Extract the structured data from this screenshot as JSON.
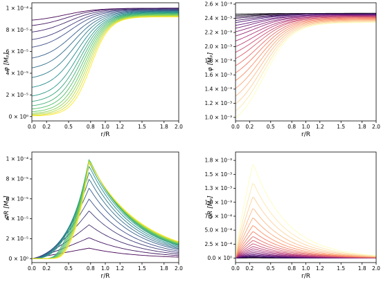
{
  "chart_data": [
    {
      "type": "line",
      "panel": "top-left",
      "xlabel": "r/R",
      "ylabel": "φ [Mₚ]",
      "xlim": [
        0,
        2
      ],
      "ylim": [
        -4e-06,
        0.000105
      ],
      "xticks": [
        0,
        0.2,
        0.5,
        0.8,
        1.0,
        1.2,
        1.5,
        1.8,
        2.0
      ],
      "xtick_labels": [
        "0.0",
        "0.2",
        "0.5",
        "0.8",
        "1.0",
        "1.2",
        "1.5",
        "1.8",
        "2.0"
      ],
      "yticks": [
        0,
        2e-05,
        4e-05,
        6e-05,
        8e-05,
        0.0001
      ],
      "ytick_labels": [
        "0 × 10⁰",
        "2 × 10⁻⁵",
        "4 × 10⁻⁵",
        "6 × 10⁻⁵",
        "8 × 10⁻⁵",
        "1 × 10⁻⁴"
      ],
      "colormap": [
        "#440154",
        "#3b528b",
        "#21918c",
        "#5ec962",
        "#fde725"
      ],
      "series_description": "family of curves: phi(r) rising from a core value phi0 to 1e-4",
      "n_series": 18,
      "core_values": [
        8.9e-05,
        8.4e-05,
        7.8e-05,
        7.1e-05,
        6.4e-05,
        5.4e-05,
        4.5e-05,
        3.6e-05,
        2.7e-05,
        1.9e-05,
        1.4e-05,
        1e-05,
        7e-06,
        4.5e-06,
        3e-06,
        2e-06,
        1.2e-06,
        6e-07
      ],
      "tail_values_at_2": [
        0.0001,
        0.0001,
        9.95e-05,
        9.9e-05,
        9.85e-05,
        9.8e-05,
        9.75e-05,
        9.7e-05,
        9.65e-05,
        9.6e-05,
        9.55e-05,
        9.5e-05,
        9.45e-05,
        9.4e-05,
        9.35e-05,
        9.3e-05,
        9.25e-05,
        9.2e-05
      ]
    },
    {
      "type": "line",
      "panel": "top-right",
      "xlabel": "r/R",
      "ylabel": "φ [Mₚ]",
      "xlim": [
        0,
        2
      ],
      "ylim": [
        0.00095,
        0.00262
      ],
      "xticks": [
        0,
        0.2,
        0.5,
        0.8,
        1.0,
        1.2,
        1.5,
        1.8,
        2.0
      ],
      "xtick_labels": [
        "0.0",
        "0.2",
        "0.5",
        "0.8",
        "1.0",
        "1.2",
        "1.5",
        "1.8",
        "2.0"
      ],
      "yticks": [
        0.001,
        0.0012,
        0.0014,
        0.0016,
        0.0018,
        0.002,
        0.0022,
        0.0024,
        0.0026
      ],
      "ytick_labels": [
        "1.0 × 10⁻³",
        "1.2 × 10⁻³",
        "1.4 × 10⁻³",
        "1.6 × 10⁻³",
        "1.8 × 10⁻³",
        "2.0 × 10⁻³",
        "2.2 × 10⁻³",
        "2.4 × 10⁻³",
        "2.6 × 10⁻³"
      ],
      "colormap": [
        "#000004",
        "#51127c",
        "#b73779",
        "#fc8961",
        "#fcfdbf"
      ],
      "series_description": "family of curves: phi(r) rising from a core value to ~2.47e-3",
      "n_series": 22,
      "core_values": [
        0.00246,
        0.00244,
        0.00242,
        0.0024,
        0.00237,
        0.00234,
        0.0023,
        0.00226,
        0.00221,
        0.00215,
        0.00208,
        0.002,
        0.00192,
        0.00183,
        0.00173,
        0.00163,
        0.00152,
        0.00141,
        0.0013,
        0.00119,
        0.00109,
        0.00099
      ],
      "tail_values_at_2": [
        0.00247,
        0.00247,
        0.00247,
        0.00246,
        0.00246,
        0.00246,
        0.00245,
        0.00245,
        0.00244,
        0.00244,
        0.00243,
        0.00243,
        0.00242,
        0.00242,
        0.00241,
        0.0024,
        0.00239,
        0.00238,
        0.00237,
        0.00236,
        0.00235,
        0.00234
      ]
    },
    {
      "type": "line",
      "panel": "bottom-left",
      "xlabel": "r/R",
      "ylabel": "σR [Mₚ]",
      "xlim": [
        0,
        2
      ],
      "ylim": [
        -4e-06,
        0.000107
      ],
      "xticks": [
        0,
        0.2,
        0.5,
        0.8,
        1.0,
        1.2,
        1.5,
        1.8,
        2.0
      ],
      "xtick_labels": [
        "0.0",
        "0.2",
        "0.5",
        "0.8",
        "1.0",
        "1.2",
        "1.5",
        "1.8",
        "2.0"
      ],
      "yticks": [
        0,
        2e-05,
        4e-05,
        6e-05,
        8e-05,
        0.0001
      ],
      "ytick_labels": [
        "0 × 10⁰",
        "2 × 10⁻⁵",
        "4 × 10⁻⁵",
        "6 × 10⁻⁵",
        "8 × 10⁻⁵",
        "1 × 10⁻⁴"
      ],
      "colormap": [
        "#440154",
        "#3b528b",
        "#21918c",
        "#5ec962",
        "#fde725"
      ],
      "series_description": "family of curves: sigma*R peaking near r/R~0.8",
      "n_series": 18,
      "peak_values": [
        1.05e-05,
        2.1e-05,
        3.4e-05,
        4.8e-05,
        6e-05,
        7.1e-05,
        8e-05,
        8.7e-05,
        9.3e-05,
        9.7e-05,
        0.0001,
        0.0001,
        0.0001,
        9.95e-05,
        9.9e-05,
        9.85e-05,
        9.8e-05,
        9.75e-05
      ],
      "tail_values_at_2": [
        1.5e-06,
        3e-06,
        4.5e-06,
        6e-06,
        7.5e-06,
        9e-06,
        1e-05,
        1.1e-05,
        1.2e-05,
        1.3e-05,
        1.35e-05,
        1.4e-05,
        1.45e-05,
        1.5e-05,
        1.55e-05,
        1.6e-05,
        1.65e-05,
        1.7e-05
      ]
    },
    {
      "type": "line",
      "panel": "bottom-right",
      "xlabel": "r/R",
      "ylabel": "σR [Mₚ]",
      "xlim": [
        0,
        2
      ],
      "ylim": [
        -8e-05,
        0.0019
      ],
      "xticks": [
        0,
        0.2,
        0.5,
        0.8,
        1.0,
        1.2,
        1.5,
        1.8,
        2.0
      ],
      "xtick_labels": [
        "0.0",
        "0.2",
        "0.5",
        "0.8",
        "1.0",
        "1.2",
        "1.5",
        "1.8",
        "2.0"
      ],
      "yticks": [
        0,
        0.00025,
        0.0005,
        0.00075,
        0.001,
        0.00125,
        0.0015,
        0.00175
      ],
      "ytick_labels": [
        "0.0 × 10⁰",
        "2.5 × 10⁻⁴",
        "5.0 × 10⁻⁴",
        "7.5 × 10⁻⁴",
        "1.0 × 10⁻³",
        "1.3 × 10⁻³",
        "1.5 × 10⁻³",
        "1.8 × 10⁻³"
      ],
      "colormap": [
        "#000004",
        "#51127c",
        "#b73779",
        "#fc8961",
        "#fcfdbf"
      ],
      "series_description": "family of curves: sigma*R peaking near r/R~0.25",
      "n_series": 22,
      "peak_values": [
        3e-06,
        7e-06,
        1.2e-05,
        2e-05,
        3e-05,
        4.4e-05,
        6e-05,
        8e-05,
        0.000105,
        0.000135,
        0.00017,
        0.00021,
        0.00026,
        0.00032,
        0.00039,
        0.00048,
        0.00059,
        0.00073,
        0.0009,
        0.00111,
        0.00136,
        0.0017
      ],
      "tail_values_at_2": [
        0,
        0,
        0,
        0,
        0,
        1e-06,
        1e-06,
        2e-06,
        2e-06,
        3e-06,
        4e-06,
        5e-06,
        6e-06,
        8e-06,
        1e-05,
        1.2e-05,
        1.5e-05,
        1.9e-05,
        2.4e-05,
        3e-05,
        3.7e-05,
        4.6e-05
      ]
    }
  ]
}
